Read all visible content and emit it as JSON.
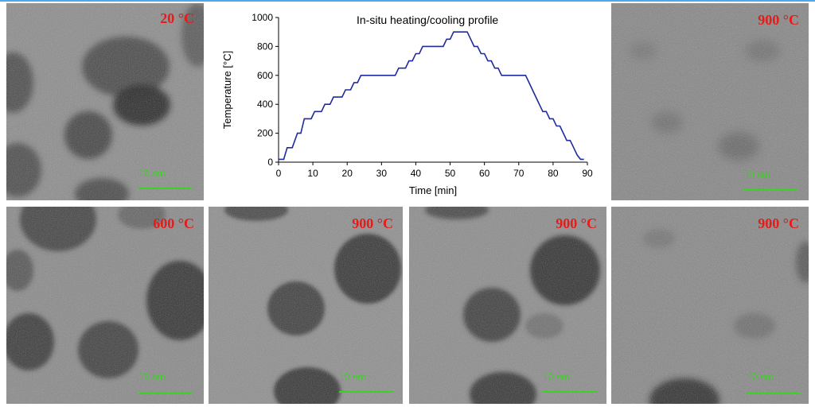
{
  "colors": {
    "temperature_label": "#e41c1c",
    "scale_bar": "#37d51f",
    "chart_line": "#1f2b9e",
    "chart_axis": "#000000",
    "accent_rule": "#4ea9ea"
  },
  "panels": [
    {
      "temperature": "20 °C",
      "scale": "10 nm"
    },
    {
      "temperature": "900 °C",
      "scale": "10 nm"
    },
    {
      "temperature": "600 °C",
      "scale": "10 nm"
    },
    {
      "temperature": "900 °C",
      "scale": "10 nm"
    },
    {
      "temperature": "900 °C",
      "scale": "10 nm"
    },
    {
      "temperature": "900 °C",
      "scale": "10 nm"
    }
  ],
  "chart_data": {
    "type": "line",
    "title": "In-situ heating/cooling profile",
    "xlabel": "Time [min]",
    "ylabel": "Temperature [°C]",
    "xlim": [
      0,
      90
    ],
    "ylim": [
      0,
      1000
    ],
    "xticks": [
      0,
      10,
      20,
      30,
      40,
      50,
      60,
      70,
      80,
      90
    ],
    "yticks": [
      0,
      200,
      400,
      600,
      800,
      1000
    ],
    "grid": false,
    "legend": "none",
    "series": [
      {
        "x": [
          0,
          1.5,
          2.5,
          4,
          5.5,
          6.5,
          7.5,
          9.5,
          10.5,
          12.5,
          13.5,
          15,
          16,
          18.5,
          19.5,
          21,
          22,
          23,
          24,
          34,
          35,
          37,
          38,
          39,
          40,
          41,
          42,
          48,
          49,
          50,
          51,
          55,
          56,
          57,
          58,
          59,
          60,
          61,
          62,
          63,
          64,
          65,
          66,
          72,
          73,
          74,
          75,
          76,
          77,
          78,
          79,
          80,
          81,
          82,
          83,
          84,
          85,
          86,
          87,
          88,
          89
        ],
        "y": [
          20,
          20,
          100,
          100,
          200,
          200,
          300,
          300,
          350,
          350,
          400,
          400,
          450,
          450,
          500,
          500,
          550,
          550,
          600,
          600,
          650,
          650,
          700,
          700,
          750,
          750,
          800,
          800,
          850,
          850,
          900,
          900,
          850,
          800,
          800,
          750,
          750,
          700,
          700,
          650,
          650,
          600,
          600,
          600,
          550,
          500,
          450,
          400,
          350,
          350,
          300,
          300,
          250,
          250,
          200,
          150,
          150,
          100,
          50,
          20,
          20
        ]
      }
    ]
  }
}
